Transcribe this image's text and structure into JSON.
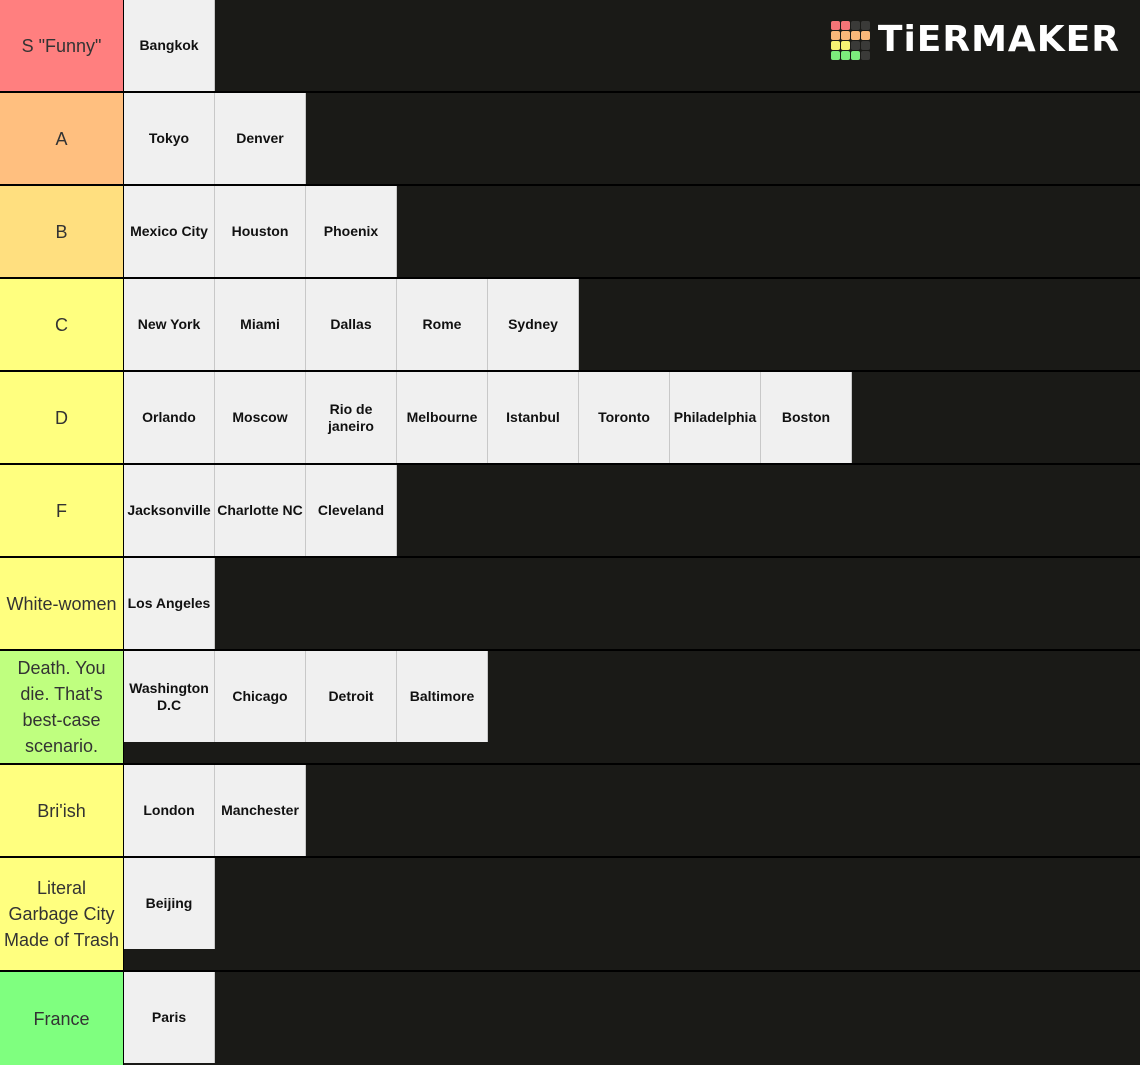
{
  "logo": {
    "text": "TiERMAKER",
    "grid_colors": [
      "#f47477",
      "#f47477",
      "#3a3a38",
      "#3a3a38",
      "#f8b77a",
      "#f8b77a",
      "#f8b77a",
      "#f8b77a",
      "#f7f373",
      "#f7f373",
      "#3a3a38",
      "#3a3a38",
      "#7ceb7c",
      "#7ceb7c",
      "#7ceb7c",
      "#3a3a38"
    ]
  },
  "tiers": [
    {
      "label": "S \"Funny\"",
      "color": "#ff7f7f",
      "items": [
        "Bangkok"
      ]
    },
    {
      "label": "A",
      "color": "#ffbf7f",
      "items": [
        "Tokyo",
        "Denver"
      ]
    },
    {
      "label": "B",
      "color": "#ffdf7f",
      "items": [
        "Mexico City",
        "Houston",
        "Phoenix"
      ]
    },
    {
      "label": "C",
      "color": "#ffff7f",
      "items": [
        "New York",
        "Miami",
        "Dallas",
        "Rome",
        "Sydney"
      ]
    },
    {
      "label": "D",
      "color": "#ffff7f",
      "items": [
        "Orlando",
        "Moscow",
        "Rio de janeiro",
        "Melbourne",
        "Istanbul",
        "Toronto",
        "Philadelphia",
        "Boston"
      ]
    },
    {
      "label": "F",
      "color": "#ffff7f",
      "items": [
        "Jacksonville",
        "Charlotte NC",
        "Cleveland"
      ]
    },
    {
      "label": "White-women",
      "color": "#ffff7f",
      "items": [
        "Los Angeles"
      ]
    },
    {
      "label": "Death. You die. That's best-case scenario.",
      "color": "#bfff7f",
      "items": [
        "Washington D.C",
        "Chicago",
        "Detroit",
        "Baltimore"
      ],
      "tall": true
    },
    {
      "label": "Bri'ish",
      "color": "#ffff7f",
      "items": [
        "London",
        "Manchester"
      ]
    },
    {
      "label": "Literal Garbage City Made of Trash",
      "color": "#ffff7f",
      "items": [
        "Beijing"
      ],
      "tall": true
    },
    {
      "label": "France",
      "color": "#7fff7f",
      "items": [
        "Paris"
      ]
    }
  ]
}
